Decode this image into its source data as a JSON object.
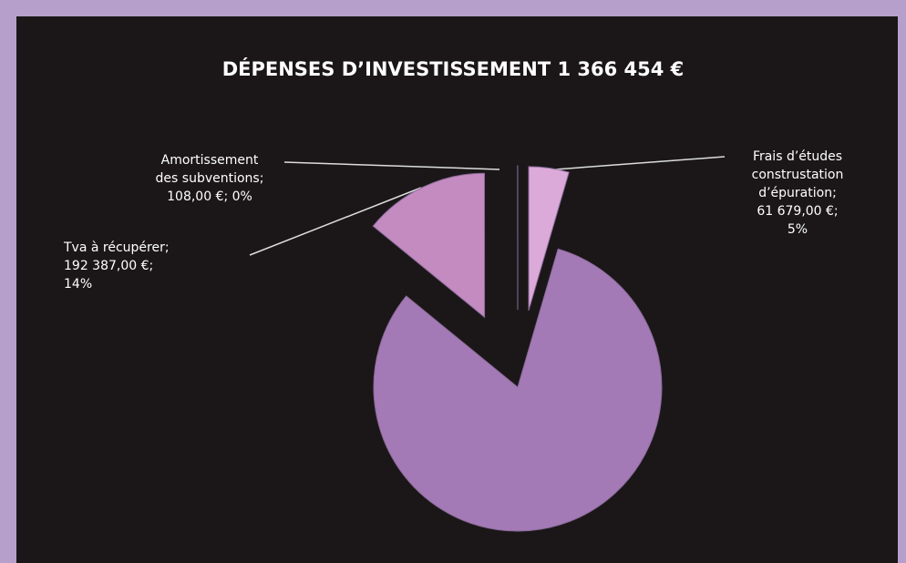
{
  "chart_data": {
    "type": "pie",
    "title": "DÉPENSES D’INVESTISSEMENT 1 366 454 €",
    "values": [
      61679,
      1112280,
      192387,
      108
    ],
    "value_labels": [
      "Frais d’études\nconstrustation\nd’épuration;\n61 679,00 €;\n5%",
      null,
      "Tva à récupérer;\n192 387,00 €;\n14%",
      "Amortissement\ndes subventions;\n108,00 €; 0%"
    ],
    "colors": [
      "#dcaad8",
      "#a47ab6",
      "#c48bc0",
      "#d2a0cf"
    ]
  }
}
